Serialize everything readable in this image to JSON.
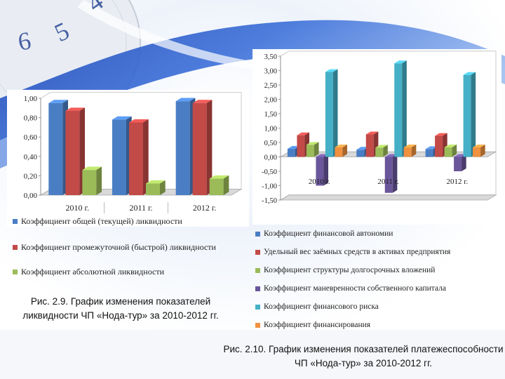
{
  "colors": {
    "blue": "#4a7ec4",
    "red": "#c24a47",
    "green": "#9bbb59",
    "purple": "#6a569a",
    "teal": "#45b0c7",
    "orange": "#f0913f"
  },
  "chart_data": [
    {
      "type": "bar",
      "title": "",
      "categories": [
        "2010 г.",
        "2011 г.",
        "2012 г."
      ],
      "series": [
        {
          "name": "Коэффициент общей (текущей) ликвидности",
          "values": [
            0.95,
            0.78,
            0.97
          ],
          "color": "#4a7ec4"
        },
        {
          "name": "Коэффициент промежуточной (быстрой) ликвидности",
          "values": [
            0.87,
            0.75,
            0.95
          ],
          "color": "#c24a47"
        },
        {
          "name": "Коэффициент абсолютной ликвидности",
          "values": [
            0.26,
            0.12,
            0.17
          ],
          "color": "#9bbb59"
        }
      ],
      "y_ticks": [
        "0,00",
        "0,20",
        "0,40",
        "0,60",
        "0,80",
        "1,00"
      ],
      "ylim": [
        0,
        1.0
      ],
      "grid": false,
      "legend_position": "bottom"
    },
    {
      "type": "bar",
      "title": "",
      "categories": [
        "2010 г.",
        "2011 г.",
        "2012 г."
      ],
      "series": [
        {
          "name": "Коэффициент финансовой автономии",
          "values": [
            0.28,
            0.25,
            0.27
          ],
          "color": "#4a7ec4"
        },
        {
          "name": "Удельный вес заёмных средств в активах предприятия",
          "values": [
            0.75,
            0.78,
            0.73
          ],
          "color": "#c24a47"
        },
        {
          "name": "Коэффициент структуры долгосрочных вложений",
          "values": [
            0.42,
            0.32,
            0.33
          ],
          "color": "#9bbb59"
        },
        {
          "name": "Коэффициент маневренности собственного капитала",
          "values": [
            -1.0,
            -1.25,
            -0.5
          ],
          "color": "#6a569a"
        },
        {
          "name": "Коэффициент финансового риска",
          "values": [
            2.95,
            3.25,
            2.85
          ],
          "color": "#45b0c7"
        },
        {
          "name": "Коэффициент финансирования",
          "values": [
            0.33,
            0.33,
            0.33
          ],
          "color": "#f0913f"
        }
      ],
      "y_ticks": [
        "-1,50",
        "-1,00",
        "-0,50",
        "0,00",
        "0,50",
        "1,00",
        "1,50",
        "2,00",
        "2,50",
        "3,00",
        "3,50"
      ],
      "ylim": [
        -1.5,
        3.5
      ],
      "grid": false,
      "legend_position": "bottom"
    }
  ],
  "captions": {
    "fig1": "Рис. 2.9. График изменения показателей ликвидности ЧП «Нода-тур» за 2010-2012 гг.",
    "fig2": "Рис. 2.10. График изменения показателей платежеспособности ЧП «Нода-тур» за 2010-2012 гг."
  }
}
